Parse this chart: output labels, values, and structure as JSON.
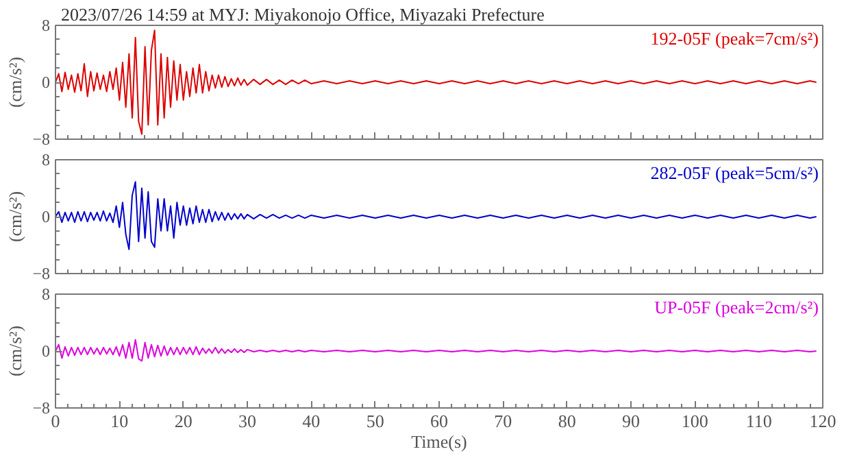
{
  "chart_data": [
    {
      "type": "line",
      "title": "2023/07/26 14:59 at MYJ: Miyakonojo Office, Miyazaki Prefecture",
      "ylabel": "(cm/s²)",
      "xlim": [
        0,
        120
      ],
      "xticks": [
        0,
        10,
        20,
        30,
        40,
        50,
        60,
        70,
        80,
        90,
        100,
        110,
        120
      ],
      "ylim": [
        -8,
        8
      ],
      "yticks": [
        -8,
        0,
        8
      ],
      "tick_labels": "y",
      "grid": false,
      "line_style": "solid",
      "series": [
        {
          "name": "192-05F (peak=7cm/s²)",
          "color": "#dd0000",
          "x": [
            0,
            0.5,
            1,
            1.5,
            2,
            2.5,
            3,
            3.5,
            4,
            4.5,
            5,
            5.5,
            6,
            6.5,
            7,
            7.5,
            8,
            8.5,
            9,
            9.5,
            10,
            10.5,
            11,
            11.5,
            12,
            12.5,
            13,
            13.5,
            14,
            14.5,
            15,
            15.5,
            16,
            16.5,
            17,
            17.5,
            18,
            18.5,
            19,
            19.5,
            20,
            20.5,
            21,
            21.5,
            22,
            22.5,
            23,
            23.5,
            24,
            24.5,
            25,
            25.5,
            26,
            26.5,
            27,
            27.5,
            28,
            28.5,
            29,
            29.5,
            30,
            31,
            32,
            33,
            34,
            35,
            36,
            37,
            38,
            39,
            40,
            42,
            44,
            46,
            48,
            50,
            52,
            54,
            56,
            58,
            60,
            62,
            64,
            66,
            68,
            70,
            72,
            74,
            76,
            78,
            80,
            82,
            84,
            86,
            88,
            90,
            92,
            94,
            96,
            98,
            100,
            102,
            104,
            106,
            108,
            110,
            112,
            114,
            116,
            118,
            119
          ],
          "values": [
            0,
            1.2,
            -1.3,
            1.4,
            -1.0,
            1.0,
            -1.4,
            1.2,
            -1.2,
            2.6,
            -2.0,
            1.5,
            -1.2,
            1.3,
            -1.0,
            1.0,
            -1.3,
            1.5,
            -1.0,
            2.0,
            -2.5,
            2.8,
            -3.5,
            4.0,
            -5.0,
            6.3,
            -5.5,
            -7.3,
            5.0,
            -6.0,
            4.5,
            7.3,
            -6.0,
            4.0,
            -5.0,
            3.5,
            -3.5,
            3.0,
            -2.5,
            2.5,
            -2.5,
            1.5,
            -2.0,
            2.0,
            -1.5,
            2.5,
            -1.5,
            1.5,
            -1.2,
            1.0,
            -0.8,
            1.0,
            -0.7,
            0.8,
            -0.6,
            0.5,
            -0.5,
            0.6,
            -0.4,
            0.4,
            -0.4,
            0.4,
            -0.3,
            0.4,
            -0.3,
            0.3,
            -0.3,
            0.3,
            -0.2,
            0.3,
            -0.2,
            0.2,
            -0.2,
            0.2,
            -0.2,
            0.2,
            -0.2,
            0.2,
            -0.2,
            0.2,
            -0.2,
            0.2,
            -0.2,
            0.2,
            -0.2,
            0.2,
            -0.2,
            0.2,
            -0.2,
            0.2,
            -0.2,
            0.2,
            -0.2,
            0.2,
            -0.2,
            0.2,
            -0.2,
            0.2,
            -0.2,
            0.2,
            -0.2,
            0.2,
            -0.2,
            0.2,
            -0.2,
            0.2,
            -0.2,
            0.2,
            -0.2,
            0.2,
            0
          ]
        }
      ]
    },
    {
      "type": "line",
      "ylabel": "(cm/s²)",
      "xlim": [
        0,
        120
      ],
      "xticks": [
        0,
        10,
        20,
        30,
        40,
        50,
        60,
        70,
        80,
        90,
        100,
        110,
        120
      ],
      "ylim": [
        -8,
        8
      ],
      "yticks": [
        -8,
        0,
        8
      ],
      "tick_labels": "y",
      "grid": false,
      "line_style": "solid",
      "series": [
        {
          "name": "282-05F (peak=5cm/s²)",
          "color": "#0000cc",
          "x": [
            0,
            0.5,
            1,
            1.5,
            2,
            2.5,
            3,
            3.5,
            4,
            4.5,
            5,
            5.5,
            6,
            6.5,
            7,
            7.5,
            8,
            8.5,
            9,
            9.5,
            10,
            10.5,
            11,
            11.5,
            12,
            12.5,
            13,
            13.5,
            14,
            14.5,
            15,
            15.5,
            16,
            16.5,
            17,
            17.5,
            18,
            18.5,
            19,
            19.5,
            20,
            20.5,
            21,
            21.5,
            22,
            22.5,
            23,
            23.5,
            24,
            24.5,
            25,
            25.5,
            26,
            26.5,
            27,
            27.5,
            28,
            28.5,
            29,
            29.5,
            30,
            31,
            32,
            33,
            34,
            35,
            36,
            37,
            38,
            39,
            40,
            42,
            44,
            46,
            48,
            50,
            52,
            54,
            56,
            58,
            60,
            62,
            64,
            66,
            68,
            70,
            72,
            74,
            76,
            78,
            80,
            82,
            84,
            86,
            88,
            90,
            92,
            94,
            96,
            98,
            100,
            102,
            104,
            106,
            108,
            110,
            112,
            114,
            116,
            118,
            119
          ],
          "values": [
            0,
            0.7,
            -0.8,
            0.6,
            -0.6,
            0.6,
            -0.8,
            0.7,
            -0.6,
            0.7,
            -0.7,
            0.6,
            -0.5,
            0.6,
            -0.6,
            0.8,
            -0.6,
            0.5,
            -0.8,
            1.5,
            -1.5,
            2.0,
            -2.5,
            -4.6,
            3.0,
            4.9,
            -3.5,
            4.0,
            -3.0,
            3.5,
            -3.5,
            -4.3,
            2.5,
            -2.0,
            2.5,
            -2.0,
            1.5,
            -3.0,
            2.0,
            -1.2,
            1.5,
            -1.2,
            1.2,
            -1.0,
            1.5,
            -0.8,
            1.0,
            -0.8,
            1.0,
            -0.7,
            0.7,
            -0.5,
            0.6,
            -0.5,
            0.5,
            -0.4,
            0.4,
            -0.3,
            0.4,
            -0.3,
            0.3,
            -0.3,
            0.3,
            -0.2,
            0.3,
            -0.2,
            0.2,
            -0.2,
            0.2,
            -0.2,
            0.2,
            -0.2,
            0.2,
            -0.2,
            0.2,
            -0.2,
            0.2,
            -0.2,
            0.2,
            -0.2,
            0.2,
            -0.2,
            0.2,
            -0.2,
            0.2,
            -0.2,
            0.2,
            -0.2,
            0.2,
            -0.2,
            0.2,
            -0.2,
            0.2,
            -0.2,
            0.2,
            -0.2,
            0.2,
            -0.2,
            0.2,
            -0.2,
            0.2,
            -0.2,
            0.2,
            -0.2,
            0.2,
            -0.2,
            0.2,
            -0.2,
            0.2,
            -0.2,
            0
          ]
        }
      ]
    },
    {
      "type": "line",
      "ylabel": "(cm/s²)",
      "xlabel": "Time(s)",
      "xlim": [
        0,
        120
      ],
      "xticks": [
        0,
        10,
        20,
        30,
        40,
        50,
        60,
        70,
        80,
        90,
        100,
        110,
        120
      ],
      "ylim": [
        -8,
        8
      ],
      "yticks": [
        -8,
        0,
        8
      ],
      "grid": false,
      "line_style": "solid",
      "series": [
        {
          "name": "UP-05F (peak=2cm/s²)",
          "color": "#dd00dd",
          "x": [
            0,
            0.5,
            1,
            1.5,
            2,
            2.5,
            3,
            3.5,
            4,
            4.5,
            5,
            5.5,
            6,
            6.5,
            7,
            7.5,
            8,
            8.5,
            9,
            9.5,
            10,
            10.5,
            11,
            11.5,
            12,
            12.5,
            13,
            13.5,
            14,
            14.5,
            15,
            15.5,
            16,
            16.5,
            17,
            17.5,
            18,
            18.5,
            19,
            19.5,
            20,
            20.5,
            21,
            21.5,
            22,
            22.5,
            23,
            23.5,
            24,
            24.5,
            25,
            25.5,
            26,
            26.5,
            27,
            27.5,
            28,
            28.5,
            29,
            29.5,
            30,
            31,
            32,
            33,
            34,
            35,
            36,
            37,
            38,
            39,
            40,
            42,
            44,
            46,
            48,
            50,
            52,
            54,
            56,
            58,
            60,
            62,
            64,
            66,
            68,
            70,
            72,
            74,
            76,
            78,
            80,
            82,
            84,
            86,
            88,
            90,
            92,
            94,
            96,
            98,
            100,
            102,
            104,
            106,
            108,
            110,
            112,
            114,
            116,
            118,
            119
          ],
          "values": [
            0,
            0.9,
            -1.0,
            0.6,
            -0.7,
            0.5,
            -0.6,
            0.5,
            -0.5,
            0.5,
            -0.5,
            0.5,
            -0.4,
            0.4,
            -0.5,
            0.5,
            -0.4,
            0.4,
            -0.5,
            0.6,
            -0.7,
            0.9,
            -1.0,
            1.2,
            -1.0,
            1.6,
            -1.1,
            -1.4,
            1.2,
            -1.0,
            0.9,
            -0.8,
            0.8,
            -0.7,
            0.7,
            -0.6,
            0.5,
            -0.5,
            0.5,
            -0.5,
            0.5,
            -0.4,
            0.5,
            -0.5,
            0.6,
            -0.5,
            0.4,
            -0.3,
            0.3,
            -0.3,
            0.5,
            -0.3,
            0.3,
            -0.3,
            0.2,
            -0.2,
            0.3,
            -0.2,
            0.2,
            -0.2,
            0.2,
            -0.1,
            0.1,
            -0.1,
            0.1,
            -0.1,
            0.1,
            -0.1,
            0.1,
            -0.1,
            0.1,
            -0.1,
            0.1,
            -0.1,
            0.1,
            -0.1,
            0.1,
            -0.1,
            0.1,
            -0.1,
            0.1,
            -0.1,
            0.1,
            -0.1,
            0.1,
            -0.1,
            0.1,
            -0.1,
            0.1,
            -0.1,
            0.1,
            -0.1,
            0.1,
            -0.1,
            0.1,
            -0.1,
            0.1,
            -0.1,
            0.1,
            -0.1,
            0.1,
            -0.1,
            0.1,
            -0.1,
            0.1,
            -0.1,
            0.1,
            -0.1,
            0.1,
            -0.1,
            0
          ]
        }
      ]
    }
  ]
}
